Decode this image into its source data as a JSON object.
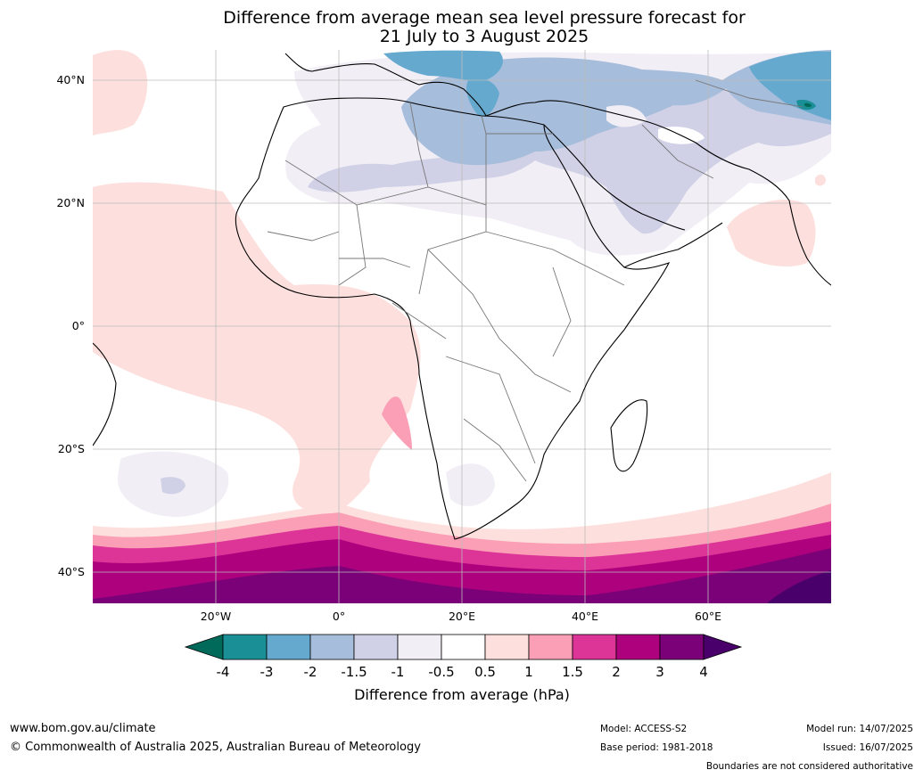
{
  "title_line1": "Difference from average mean sea level pressure forecast for",
  "title_line2": "21 July to 3 August 2025",
  "lat_labels": [
    "40°N",
    "20°N",
    "0°",
    "20°S",
    "40°S"
  ],
  "lon_labels": [
    "20°W",
    "0°",
    "20°E",
    "40°E",
    "60°E"
  ],
  "colorbar": {
    "title": "Difference from average (hPa)",
    "ticks": [
      "-4",
      "-3",
      "-2",
      "-1.5",
      "-1",
      "-0.5",
      "0.5",
      "1",
      "1.5",
      "2",
      "3",
      "4"
    ],
    "colors": [
      "#006a5a",
      "#1a8f96",
      "#66a9cf",
      "#a6bddb",
      "#d0d1e6",
      "#f1eef6",
      "#ffffff",
      "#fde0dd",
      "#fa9fb5",
      "#dd3497",
      "#ae017e",
      "#7a0177",
      "#49006a"
    ]
  },
  "footer": {
    "url": "www.bom.gov.au/climate",
    "copyright": "© Commonwealth of Australia 2025, Australian Bureau of Meteorology",
    "model": "Model: ACCESS-S2",
    "base_period": "Base period: 1981-2018",
    "model_run": "Model run: 14/07/2025",
    "issued": "Issued: 16/07/2025",
    "disclaimer": "Boundaries are not considered authoritative"
  }
}
